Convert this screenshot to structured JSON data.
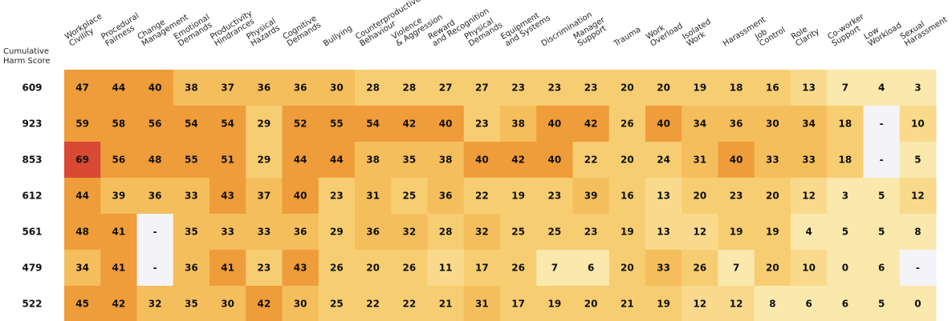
{
  "chart_data": {
    "type": "heatmap",
    "row_header": "Cumulative Harm Score",
    "columns": [
      "Workplace Civility",
      "Procedural Fairness",
      "Change Management",
      "Emotional Demands",
      "Productivity Hindrances",
      "Physical Hazards",
      "Cognitive Demands",
      "Bullying",
      "Counterproductive Behaviour",
      "Violence & Aggression",
      "Reward and Recognition",
      "Physical Demands",
      "Equipment and Systems",
      "Discrimination",
      "Manager Support",
      "Trauma",
      "Work Overload",
      "Isolated Work",
      "Harassment",
      "Job Control",
      "Role Clarity",
      "Co-worker Support",
      "Low Workload",
      "Sexual Harassment"
    ],
    "rows": [
      {
        "score": "609",
        "values": [
          47,
          44,
          40,
          38,
          37,
          36,
          36,
          30,
          28,
          28,
          27,
          27,
          23,
          23,
          23,
          20,
          20,
          19,
          18,
          16,
          13,
          7,
          4,
          3
        ]
      },
      {
        "score": "923",
        "values": [
          59,
          58,
          56,
          54,
          54,
          29,
          52,
          55,
          54,
          42,
          40,
          23,
          38,
          40,
          42,
          26,
          40,
          34,
          36,
          30,
          34,
          18,
          null,
          10
        ]
      },
      {
        "score": "853",
        "values": [
          69,
          56,
          48,
          55,
          51,
          29,
          44,
          44,
          38,
          35,
          38,
          40,
          42,
          40,
          22,
          20,
          24,
          31,
          40,
          33,
          33,
          18,
          null,
          5
        ]
      },
      {
        "score": "612",
        "values": [
          44,
          39,
          36,
          33,
          43,
          37,
          40,
          23,
          31,
          25,
          36,
          22,
          19,
          23,
          39,
          16,
          13,
          20,
          23,
          20,
          12,
          3,
          5,
          12
        ]
      },
      {
        "score": "561",
        "values": [
          48,
          41,
          null,
          35,
          33,
          33,
          36,
          29,
          36,
          32,
          28,
          32,
          25,
          25,
          23,
          19,
          13,
          12,
          19,
          19,
          4,
          5,
          5,
          8
        ]
      },
      {
        "score": "479",
        "values": [
          34,
          41,
          null,
          36,
          41,
          23,
          43,
          26,
          20,
          26,
          11,
          17,
          26,
          7,
          6,
          20,
          33,
          26,
          7,
          20,
          10,
          0,
          6,
          null
        ]
      },
      {
        "score": "522",
        "values": [
          45,
          42,
          32,
          35,
          30,
          42,
          30,
          25,
          22,
          22,
          21,
          31,
          17,
          19,
          20,
          21,
          19,
          12,
          12,
          8,
          6,
          6,
          5,
          0
        ]
      }
    ],
    "missing_label": "-",
    "colors": {
      "missing": "#f3f3f8",
      "scale": [
        "#fbe8ad",
        "#f9da8c",
        "#f7cd72",
        "#f5be5c",
        "#ef9c3a",
        "#d84a33"
      ]
    },
    "legend": "none"
  }
}
